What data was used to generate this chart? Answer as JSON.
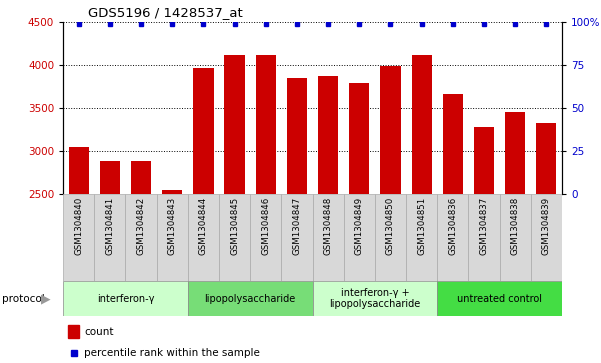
{
  "title": "GDS5196 / 1428537_at",
  "samples": [
    "GSM1304840",
    "GSM1304841",
    "GSM1304842",
    "GSM1304843",
    "GSM1304844",
    "GSM1304845",
    "GSM1304846",
    "GSM1304847",
    "GSM1304848",
    "GSM1304849",
    "GSM1304850",
    "GSM1304851",
    "GSM1304836",
    "GSM1304837",
    "GSM1304838",
    "GSM1304839"
  ],
  "counts": [
    3050,
    2880,
    2880,
    2545,
    3960,
    4120,
    4120,
    3850,
    3870,
    3790,
    3990,
    4120,
    3660,
    3280,
    3450,
    3330
  ],
  "ylim_left": [
    2500,
    4500
  ],
  "ylim_right": [
    0,
    100
  ],
  "yticks_left": [
    2500,
    3000,
    3500,
    4000,
    4500
  ],
  "yticks_right": [
    0,
    25,
    50,
    75,
    100
  ],
  "ytick_right_labels": [
    "0",
    "25",
    "50",
    "75",
    "100%"
  ],
  "bar_color": "#cc0000",
  "dot_color": "#0000cc",
  "dot_pct_value": 98.5,
  "group_defs": [
    {
      "label": "interferon-γ",
      "start": 0,
      "end": 3,
      "color": "#ccffcc"
    },
    {
      "label": "lipopolysaccharide",
      "start": 4,
      "end": 7,
      "color": "#77dd77"
    },
    {
      "label": "interferon-γ +\nlipopolysaccharide",
      "start": 8,
      "end": 11,
      "color": "#ccffcc"
    },
    {
      "label": "untreated control",
      "start": 12,
      "end": 15,
      "color": "#44dd44"
    }
  ],
  "sample_box_color": "#d8d8d8",
  "sample_box_edge": "#aaaaaa",
  "legend_count_label": "count",
  "legend_pct_label": "percentile rank within the sample",
  "protocol_label": "protocol",
  "fig_width": 6.01,
  "fig_height": 3.63,
  "dpi": 100
}
